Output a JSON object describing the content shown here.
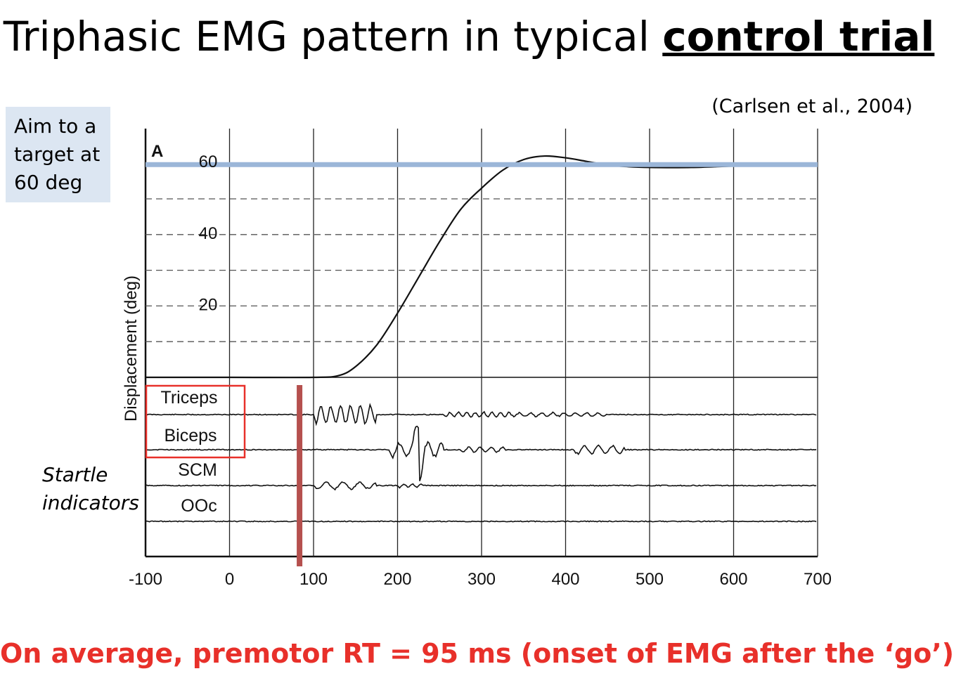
{
  "slide": {
    "title_main": "Triphasic EMG pattern in typical ",
    "title_emph": "control trial",
    "citation": "(Carlsen et al., 2004)",
    "aim_box_text": "Aim to a target at 60 deg",
    "startle_text": "Startle indicators",
    "bottom_note": "On average, premotor RT = 95 ms (onset of EMG after the ‘go’)"
  },
  "colors": {
    "target_line": "#9bb6d8",
    "onset_marker": "#b5504e",
    "highlight_box": "#e8302a",
    "bottom_note": "#e8302a",
    "aim_box_bg": "#dce6f2"
  },
  "chart_data": {
    "type": "line",
    "panel_label": "A",
    "ylabel": "Displacement (deg)",
    "xlim": [
      -100,
      700
    ],
    "x_ticks": [
      -100,
      0,
      100,
      200,
      300,
      400,
      500,
      600,
      700
    ],
    "y_tick_labels": [
      20,
      40,
      60
    ],
    "grid": true,
    "target_deg": 60,
    "onset_marker_ms": 85,
    "series": [
      {
        "name": "",
        "x": [
          -100,
          0,
          100,
          130,
          150,
          175,
          200,
          225,
          250,
          275,
          300,
          325,
          350,
          375,
          400,
          425,
          450,
          475,
          500,
          550,
          600,
          650,
          700
        ],
        "y": [
          0,
          0,
          0,
          0.5,
          3,
          9,
          18,
          28,
          38,
          47,
          53,
          58,
          61,
          62,
          61.5,
          60.5,
          59.5,
          59,
          58.8,
          58.8,
          59.2,
          59.5,
          59.7
        ]
      }
    ],
    "emg_channels": [
      "Triceps",
      "Biceps",
      "SCM",
      "OOc"
    ],
    "highlighted_channels": [
      "Triceps",
      "Biceps"
    ]
  }
}
